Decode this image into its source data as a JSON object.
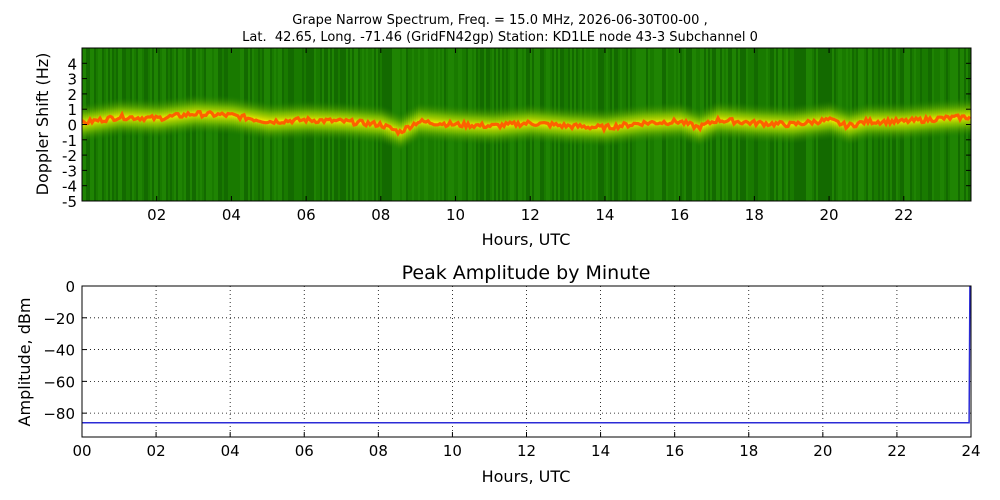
{
  "title": {
    "line1": "Grape Narrow Spectrum, Freq. = 15.0 MHz, 2026-06-30T00-00 ,",
    "line2": "Lat.  42.65, Long. -71.46 (GridFN42gp) Station: KD1LE node 43-3 Subchannel 0"
  },
  "colors": {
    "background_green": "#1a7a00",
    "band_yellow": "#e8e800",
    "band_orange": "#ff5a00",
    "line_blue": "#2b2bd6",
    "grid": "#000000"
  },
  "chart_data": [
    {
      "type": "heatmap",
      "title": "",
      "xlabel": "Hours, UTC",
      "ylabel": "Doppler Shift (Hz)",
      "xlim": [
        0,
        23.8
      ],
      "ylim": [
        -5,
        5
      ],
      "x_ticks": [
        2,
        4,
        6,
        8,
        10,
        12,
        14,
        16,
        18,
        20,
        22
      ],
      "x_tick_labels": [
        "02",
        "04",
        "06",
        "08",
        "10",
        "12",
        "14",
        "16",
        "18",
        "20",
        "22"
      ],
      "y_ticks": [
        4,
        3,
        2,
        1,
        0,
        -1,
        -2,
        -3,
        -4,
        -5
      ],
      "y_tick_labels": [
        "4",
        "3",
        "2",
        "1",
        "0",
        "-1",
        "-2",
        "-3",
        "-4",
        "-5"
      ],
      "grid": false,
      "peak_doppler_trace": {
        "hours": [
          0,
          1,
          2,
          3,
          4,
          5,
          6,
          7,
          8,
          8.5,
          9,
          10,
          11,
          12,
          13,
          14,
          15,
          16,
          16.5,
          17,
          18,
          19,
          20,
          20.5,
          21,
          22,
          23,
          23.8
        ],
        "doppler_hz": [
          0.1,
          0.5,
          0.4,
          0.7,
          0.6,
          0.2,
          0.3,
          0.2,
          0.0,
          -0.5,
          0.2,
          0.0,
          -0.1,
          0.1,
          -0.1,
          -0.2,
          0.1,
          0.2,
          -0.2,
          0.3,
          0.1,
          0.0,
          0.3,
          -0.1,
          0.2,
          0.2,
          0.4,
          0.5
        ]
      }
    },
    {
      "type": "line",
      "title": "Peak Amplitude by Minute",
      "xlabel": "Hours, UTC",
      "ylabel": "Amplitude, dBm",
      "xlim": [
        0,
        24
      ],
      "ylim": [
        -95,
        0
      ],
      "x_ticks": [
        0,
        2,
        4,
        6,
        8,
        10,
        12,
        14,
        16,
        18,
        20,
        22,
        24
      ],
      "x_tick_labels": [
        "00",
        "02",
        "04",
        "06",
        "08",
        "10",
        "12",
        "14",
        "16",
        "18",
        "20",
        "22",
        "24"
      ],
      "y_ticks": [
        0,
        -20,
        -40,
        -60,
        -80
      ],
      "y_tick_labels": [
        "0",
        "−20",
        "−40",
        "−60",
        "−80"
      ],
      "grid": true,
      "series": [
        {
          "x": [
            0,
            2,
            4,
            6,
            8,
            10,
            12,
            14,
            16,
            18,
            20,
            22,
            23.95,
            23.97,
            24
          ],
          "y": [
            -86,
            -86,
            -86,
            -86,
            -86,
            -86,
            -86,
            -86,
            -86,
            -86,
            -86,
            -86,
            -86,
            0,
            0
          ]
        }
      ]
    }
  ]
}
